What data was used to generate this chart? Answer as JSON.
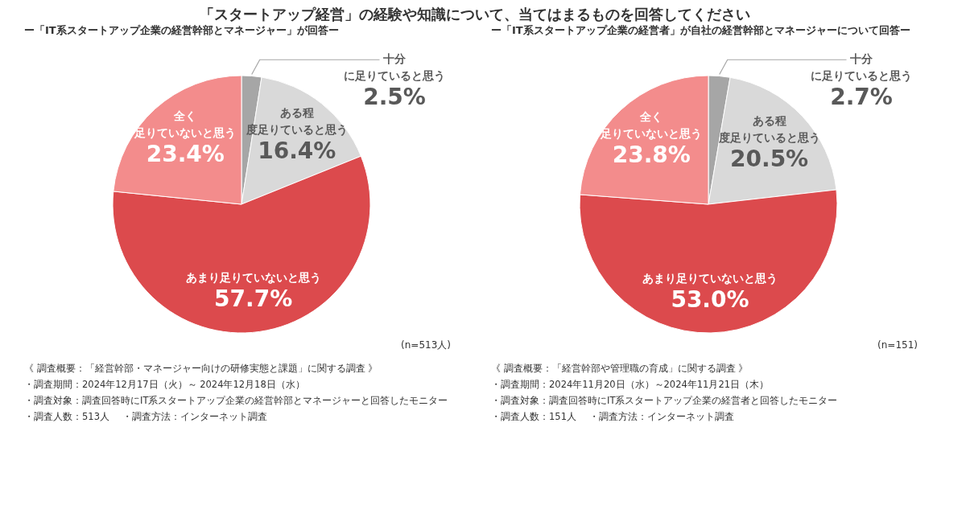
{
  "chart_data": [
    {
      "type": "pie",
      "title": "「スタートアップ経営」の経験や知識について、当てはまるものを回答してください",
      "subtitle": "ー「IT系スタートアップ企業の経営幹部とマネージャー」が回答ー",
      "categories": [
        "十分に足りていると思う",
        "ある程度足りていると思う",
        "あまり足りていないと思う",
        "全く足りていないと思う"
      ],
      "values": [
        2.5,
        16.4,
        57.7,
        23.4
      ],
      "value_labels": [
        "2.5%",
        "16.4%",
        "57.7%",
        "23.4%"
      ],
      "colors": [
        "#a6a6a6",
        "#d9d9d9",
        "#dc4a4d",
        "#f38c8c"
      ],
      "legend": false,
      "annotations": [
        "(n=513人)",
        "《 調査概要：「経営幹部・マネージャー向けの研修実態と課題」に関する調査 》",
        "・調査期間：2024年12月17日（火）～ 2024年12月18日（水）",
        "・調査対象：調査回答時にIT系スタートアップ企業の経営幹部とマネージャーと回答したモニター",
        "・調査人数：513人　 ・調査方法：インターネット調査"
      ]
    },
    {
      "type": "pie",
      "subtitle": "ー「IT系スタートアップ企業の経営者」が自社の経営幹部とマネージャーについて回答ー",
      "categories": [
        "十分に足りていると思う",
        "ある程度足りていると思う",
        "あまり足りていないと思う",
        "全く足りていないと思う"
      ],
      "values": [
        2.7,
        20.5,
        53.0,
        23.8
      ],
      "value_labels": [
        "2.7%",
        "20.5%",
        "53.0%",
        "23.8%"
      ],
      "colors": [
        "#a6a6a6",
        "#d9d9d9",
        "#dc4a4d",
        "#f38c8c"
      ],
      "legend": false,
      "annotations": [
        "(n=151)",
        "《 調査概要：「経営幹部や管理職の育成」に関する調査 》",
        "・調査期間：2024年11月20日（水）～2024年11月21日（木）",
        "・調査対象：調査回答時にIT系スタートアップ企業の経営者と回答したモニター",
        "・調査人数：151人　 ・調査方法：インターネット調査"
      ]
    }
  ]
}
